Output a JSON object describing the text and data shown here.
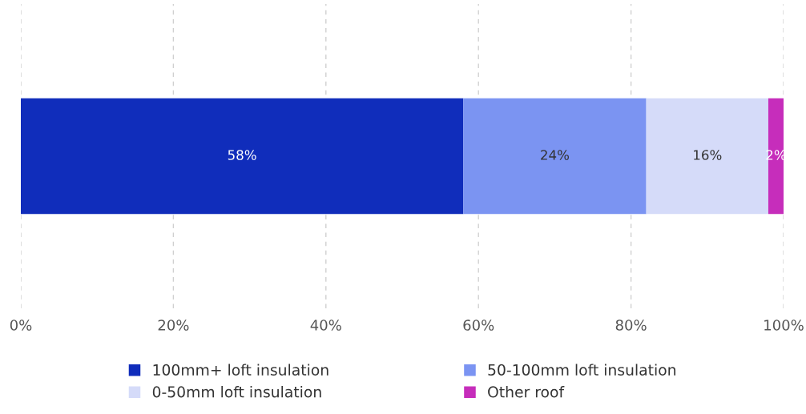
{
  "chart_data": {
    "type": "bar",
    "orientation": "horizontal",
    "stacked": true,
    "categories": [
      null
    ],
    "series": [
      {
        "name": "100mm+ loft insulation",
        "color": "#102dbb",
        "values": [
          58
        ],
        "value_labels": [
          "58%"
        ]
      },
      {
        "name": "50-100mm loft insulation",
        "color": "#7b94f2",
        "values": [
          24
        ],
        "value_labels": [
          "24%"
        ]
      },
      {
        "name": "0-50mm loft insulation",
        "color": "#d5dbf9",
        "values": [
          16
        ],
        "value_labels": [
          "16%"
        ]
      },
      {
        "name": "Other roof",
        "color": "#c62dbb",
        "values": [
          2
        ],
        "value_labels": [
          "2%"
        ]
      }
    ],
    "xlim": [
      0,
      100
    ],
    "xticks": [
      {
        "value": 0,
        "label": "0%"
      },
      {
        "value": 20,
        "label": "20%"
      },
      {
        "value": 40,
        "label": "40%"
      },
      {
        "value": 60,
        "label": "60%"
      },
      {
        "value": 80,
        "label": "80%"
      },
      {
        "value": 100,
        "label": "100%"
      }
    ],
    "grid": "x",
    "legend": "bottom"
  }
}
